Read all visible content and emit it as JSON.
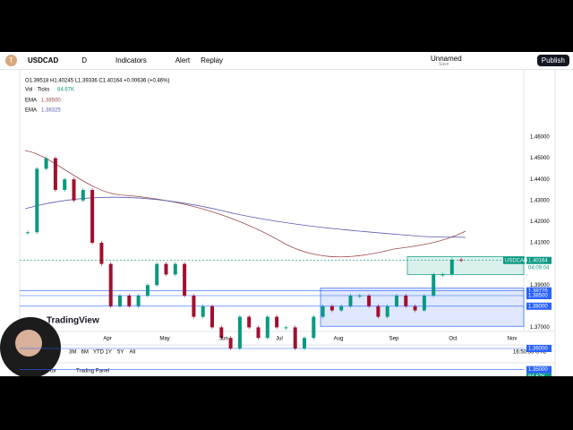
{
  "header": {
    "avatar": "T",
    "symbol": "USDCAD",
    "interval": "D",
    "indicators": "Indicators",
    "alert": "Alert",
    "replay": "Replay",
    "layout_name": "Unnamed",
    "layout_save": "Save",
    "publish": "Publish"
  },
  "legend": {
    "ohlc": "O1.39518 H1.40245 L1.39336 C1.40164 +0.00636 (+0.46%)",
    "volume_name": "Vol · Ticks",
    "volume_value": "84.67K",
    "ema1_name": "EMA",
    "ema1_value": "1.38500",
    "ema2_name": "EMA",
    "ema2_value": "1.38325"
  },
  "chart": {
    "closes": [
      1.415,
      1.445,
      1.45,
      1.435,
      1.44,
      1.43,
      1.435,
      1.41,
      1.4,
      1.38,
      1.385,
      1.38,
      1.385,
      1.39,
      1.4,
      1.395,
      1.4,
      1.385,
      1.375,
      1.38,
      1.37,
      1.365,
      1.36,
      1.375,
      1.37,
      1.365,
      1.375,
      1.37,
      1.37,
      1.36,
      1.365,
      1.375,
      1.38,
      1.378,
      1.38,
      1.385,
      1.385,
      1.38,
      1.375,
      1.38,
      1.385,
      1.38,
      1.378,
      1.385,
      1.395,
      1.395,
      1.402,
      1.40164
    ],
    "price_axis": [
      {
        "value": 1.46,
        "label": "1.46000"
      },
      {
        "value": 1.45,
        "label": "1.45000"
      },
      {
        "value": 1.44,
        "label": "1.44000"
      },
      {
        "value": 1.43,
        "label": "1.43000"
      },
      {
        "value": 1.42,
        "label": "1.42000"
      },
      {
        "value": 1.41,
        "label": "1.41000"
      },
      {
        "value": 1.39,
        "label": "1.39000"
      },
      {
        "value": 1.37,
        "label": "1.37000"
      }
    ],
    "price_tags": [
      {
        "value": 1.40164,
        "label": "1.40164",
        "color": "#089981"
      },
      {
        "value": 1.38725,
        "label": "1.38725",
        "color": "#2962ff"
      },
      {
        "value": 1.385,
        "label": "1.38500",
        "color": "#2962ff"
      },
      {
        "value": 1.38,
        "label": "1.38000",
        "color": "#2962ff"
      },
      {
        "value": 1.36,
        "label": "1.36000",
        "color": "#2962ff"
      },
      {
        "value": 1.35,
        "label": "1.35000",
        "color": "#2962ff"
      }
    ],
    "symbol_tag": "USDCAD",
    "countdown": "04:09:04",
    "volume_tag": "84.67K",
    "time_axis": [
      "Apr",
      "May",
      "Jun",
      "Jul",
      "Aug",
      "Sep",
      "Oct",
      "Nov"
    ],
    "watermark": "TradingView"
  },
  "footer": {
    "ranges": [
      "3M",
      "6M",
      "YTD",
      "1Y",
      "5Y",
      "All"
    ],
    "clock": "16:50:56 UTC",
    "tab_left": "tor",
    "tab_trading": "Trading Panel"
  }
}
